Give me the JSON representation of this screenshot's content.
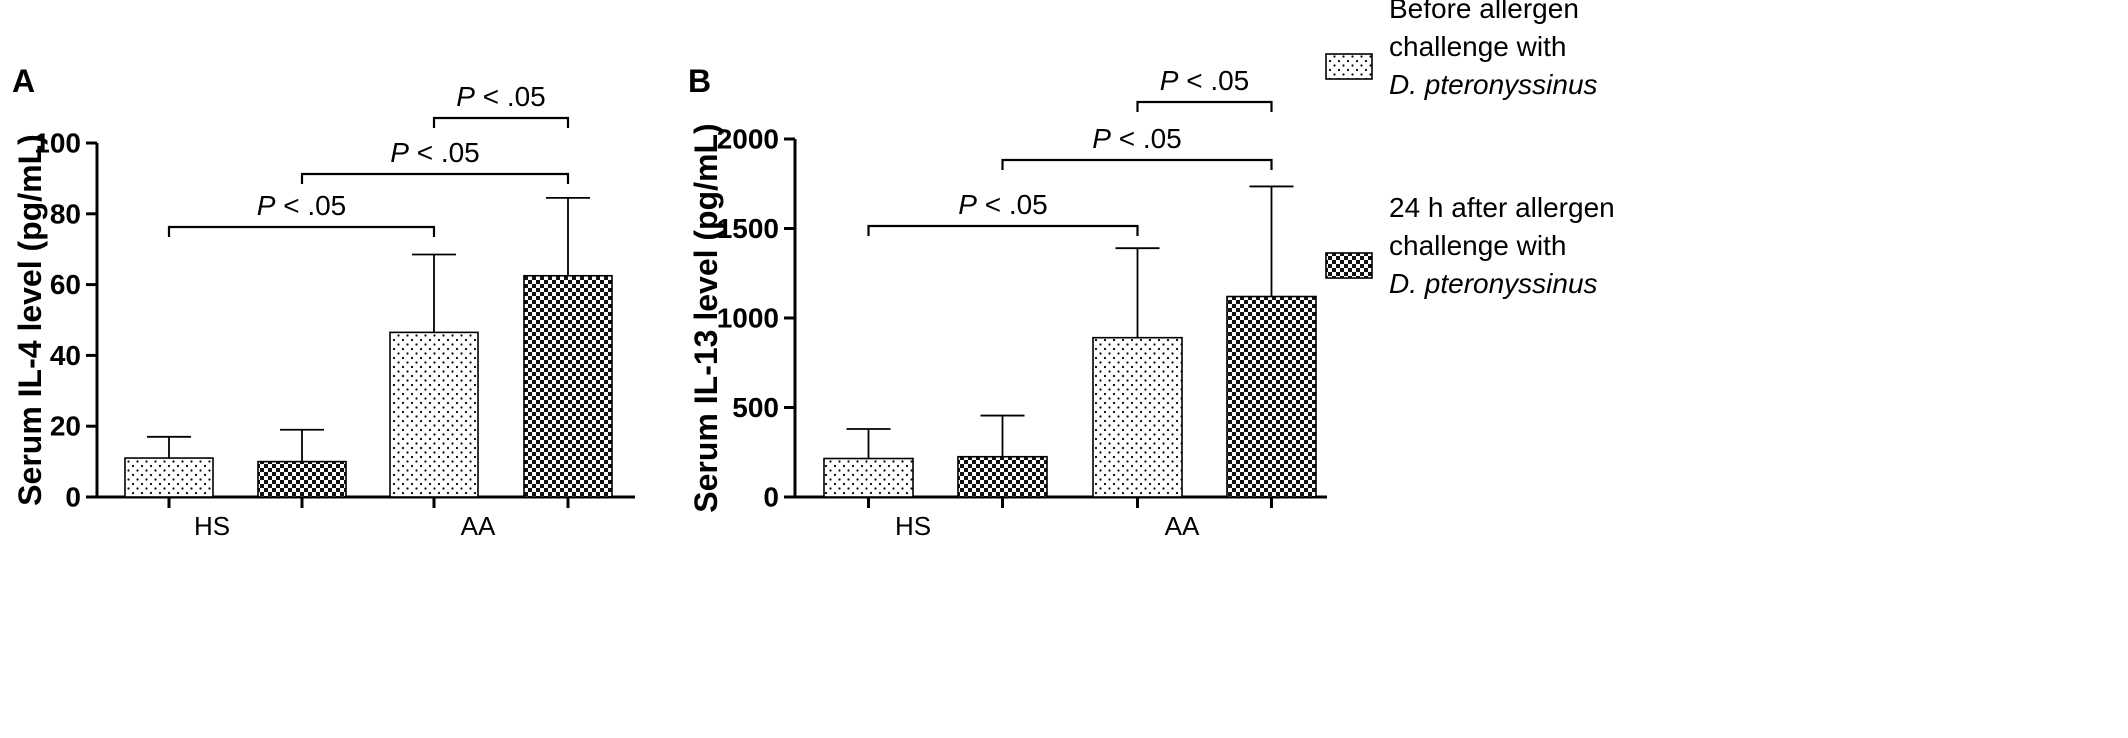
{
  "legend": [
    {
      "lines": [
        "Before allergen",
        "challenge with",
        "D. pteronyssinus"
      ],
      "italic_line": 2,
      "pattern": "dots"
    },
    {
      "lines": [
        "24 h after allergen",
        "challenge with",
        "D. pteronyssinus"
      ],
      "italic_line": 2,
      "pattern": "checker"
    }
  ],
  "chart_data": [
    {
      "type": "bar",
      "panel": "A",
      "ylabel": "Serum IL-4 level (pg/mL)",
      "xlabel": "",
      "ylim": [
        0,
        100
      ],
      "yticks": [
        0,
        20,
        40,
        60,
        80,
        100
      ],
      "categories": [
        "HS",
        "AA"
      ],
      "series": [
        {
          "pattern": "dots",
          "values": [
            11,
            46.5
          ],
          "error": [
            6,
            22
          ]
        },
        {
          "pattern": "checker",
          "values": [
            10,
            62.5
          ],
          "error": [
            9,
            22
          ]
        }
      ],
      "significance": [
        {
          "from": [
            0,
            0
          ],
          "to": [
            1,
            0
          ],
          "label_p": "P",
          "label_rest": " < .05"
        },
        {
          "from": [
            0,
            1
          ],
          "to": [
            1,
            1
          ],
          "label_p": "P",
          "label_rest": " < .05"
        },
        {
          "from": [
            1,
            0
          ],
          "to": [
            1,
            1
          ],
          "label_p": "P",
          "label_rest": " < .05"
        }
      ]
    },
    {
      "type": "bar",
      "panel": "B",
      "ylabel": "Serum IL-13 level (pg/mL)",
      "xlabel": "",
      "ylim": [
        0,
        2000
      ],
      "yticks": [
        0,
        500,
        1000,
        1500,
        2000
      ],
      "categories": [
        "HS",
        "AA"
      ],
      "series": [
        {
          "pattern": "dots",
          "values": [
            215,
            890
          ],
          "error": [
            165,
            500
          ]
        },
        {
          "pattern": "checker",
          "values": [
            225,
            1120
          ],
          "error": [
            230,
            615
          ]
        }
      ],
      "significance": [
        {
          "from": [
            0,
            0
          ],
          "to": [
            1,
            0
          ],
          "label_p": "P",
          "label_rest": " < .05"
        },
        {
          "from": [
            0,
            1
          ],
          "to": [
            1,
            1
          ],
          "label_p": "P",
          "label_rest": " < .05"
        },
        {
          "from": [
            1,
            0
          ],
          "to": [
            1,
            1
          ],
          "label_p": "P",
          "label_rest": " < .05"
        }
      ]
    }
  ]
}
